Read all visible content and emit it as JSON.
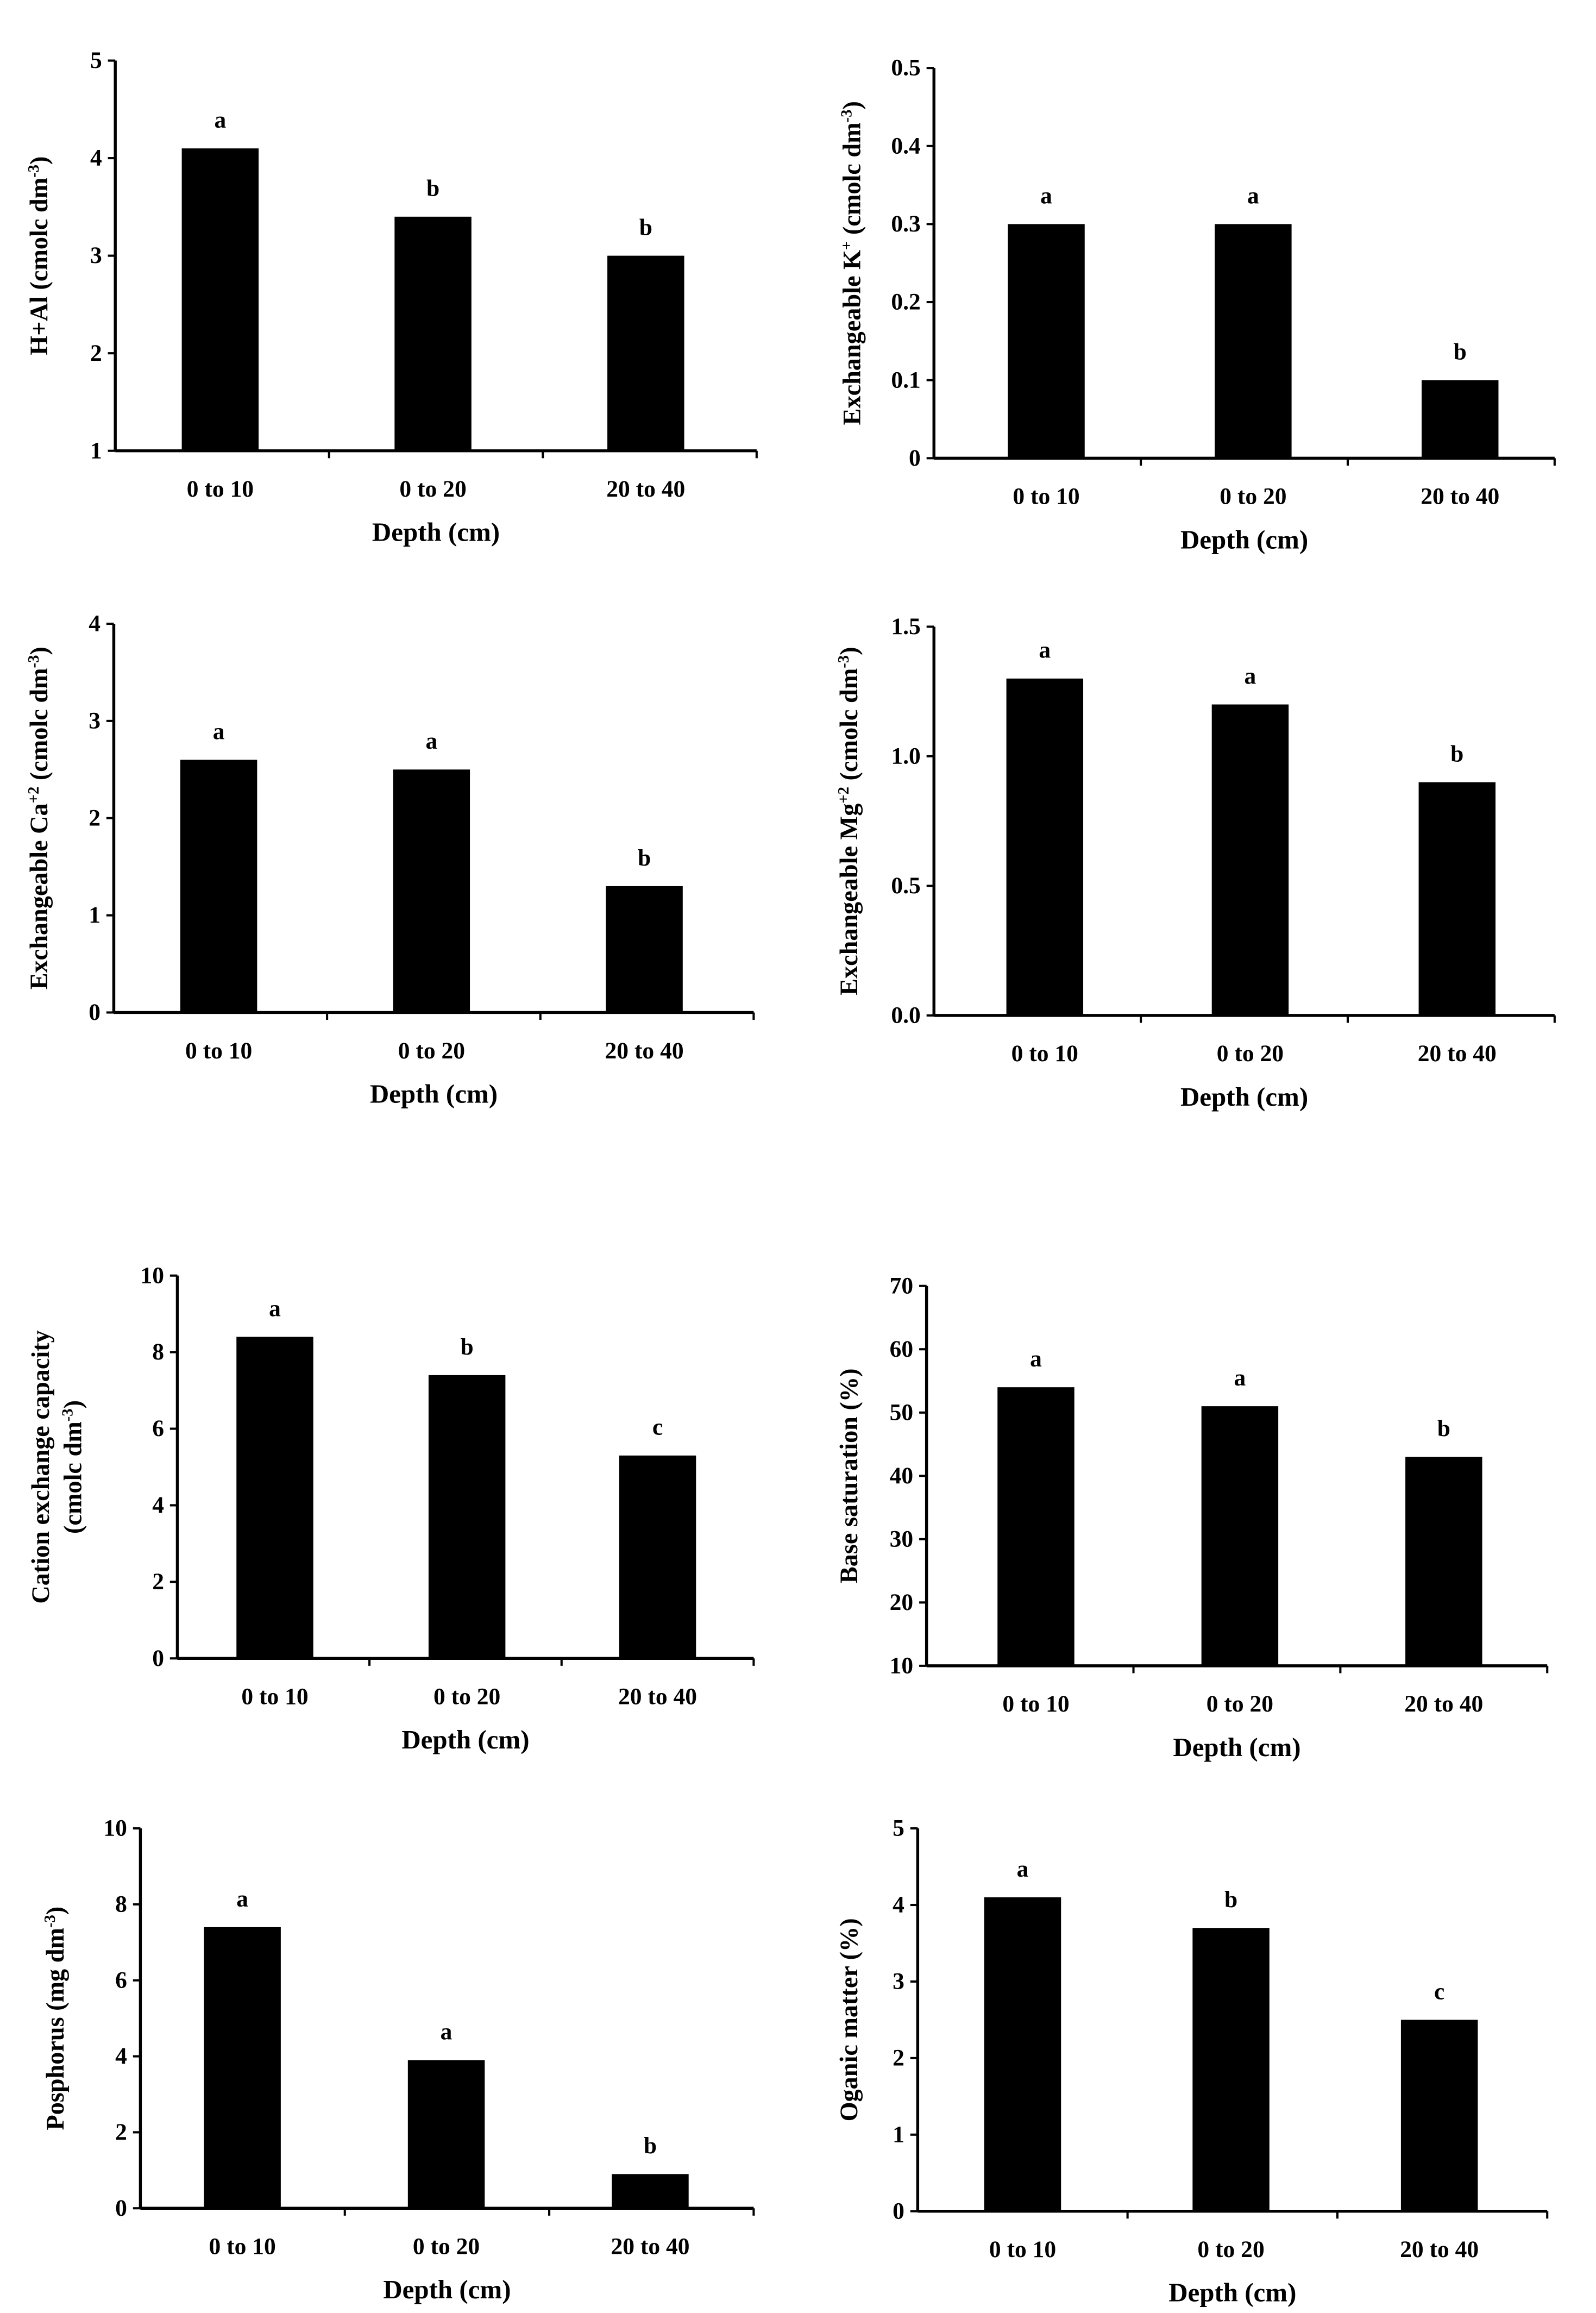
{
  "colors": {
    "bar": "#000000",
    "axis": "#000000",
    "background": "#ffffff"
  },
  "chart_data": [
    {
      "id": "h-al",
      "type": "bar",
      "title": "",
      "xlabel": "Depth (cm)",
      "ylabel_lines": [
        [
          "H+Al (cmolc dm",
          "-3",
          ")"
        ]
      ],
      "categories": [
        "0 to 10",
        "0 to 20",
        "20 to 40"
      ],
      "values": [
        4.1,
        3.4,
        3.0
      ],
      "letters": [
        "a",
        "b",
        "b"
      ],
      "ylim": [
        1,
        5
      ],
      "ytick_values": [
        1,
        2,
        3,
        4,
        5
      ],
      "ytick_labels": [
        "1",
        "2",
        "3",
        "4",
        "5"
      ]
    },
    {
      "id": "potassium",
      "type": "bar",
      "title": "",
      "xlabel": "Depth (cm)",
      "ylabel_lines": [
        [
          "Exchangeable  K",
          "+",
          " (cmolc dm",
          "-3",
          ")"
        ]
      ],
      "categories": [
        "0 to 10",
        "0 to 20",
        "20 to 40"
      ],
      "values": [
        0.3,
        0.3,
        0.1
      ],
      "letters": [
        "a",
        "a",
        "b"
      ],
      "ylim": [
        0,
        0.5
      ],
      "ytick_values": [
        0,
        0.1,
        0.2,
        0.3,
        0.4,
        0.5
      ],
      "ytick_labels": [
        "0",
        "0.1",
        "0.2",
        "0.3",
        "0.4",
        "0.5"
      ]
    },
    {
      "id": "calcium",
      "type": "bar",
      "title": "",
      "xlabel": "Depth (cm)",
      "ylabel_lines": [
        [
          "Exchangeable  Ca",
          "+2",
          " (cmolc dm",
          "-3",
          ")"
        ]
      ],
      "categories": [
        "0 to 10",
        "0 to 20",
        "20 to 40"
      ],
      "values": [
        2.6,
        2.5,
        1.3
      ],
      "letters": [
        "a",
        "a",
        "b"
      ],
      "ylim": [
        0,
        4
      ],
      "ytick_values": [
        0,
        1,
        2,
        3,
        4
      ],
      "ytick_labels": [
        "0",
        "1",
        "2",
        "3",
        "4"
      ]
    },
    {
      "id": "magnesium",
      "type": "bar",
      "title": "",
      "xlabel": "Depth (cm)",
      "ylabel_lines": [
        [
          "Exchangeable  Mg",
          "+2",
          " (cmolc dm",
          "-3",
          ")"
        ]
      ],
      "categories": [
        "0 to 10",
        "0 to 20",
        "20 to 40"
      ],
      "values": [
        1.3,
        1.2,
        0.9
      ],
      "letters": [
        "a",
        "a",
        "b"
      ],
      "ylim": [
        0,
        1.5
      ],
      "ytick_values": [
        0,
        0.5,
        1.0,
        1.5
      ],
      "ytick_labels": [
        "0.0",
        "0.5",
        "1.0",
        "1.5"
      ]
    },
    {
      "id": "cec",
      "type": "bar",
      "title": "",
      "xlabel": "Depth (cm)",
      "ylabel_lines": [
        [
          "Cation exchange capacity"
        ],
        [
          "(cmolc dm",
          "-3",
          ")"
        ]
      ],
      "categories": [
        "0 to 10",
        "0 to 20",
        "20 to 40"
      ],
      "values": [
        8.4,
        7.4,
        5.3
      ],
      "letters": [
        "a",
        "b",
        "c"
      ],
      "ylim": [
        0,
        10
      ],
      "ytick_values": [
        0,
        2,
        4,
        6,
        8,
        10
      ],
      "ytick_labels": [
        "0",
        "2",
        "4",
        "6",
        "8",
        "10"
      ]
    },
    {
      "id": "base-saturation",
      "type": "bar",
      "title": "",
      "xlabel": "Depth (cm)",
      "ylabel_lines": [
        [
          "Base saturation (%)"
        ]
      ],
      "categories": [
        "0 to 10",
        "0 to 20",
        "20 to 40"
      ],
      "values": [
        54,
        51,
        43
      ],
      "letters": [
        "a",
        "a",
        "b"
      ],
      "ylim": [
        10,
        70
      ],
      "ytick_values": [
        10,
        20,
        30,
        40,
        50,
        60,
        70
      ],
      "ytick_labels": [
        "10",
        "20",
        "30",
        "40",
        "50",
        "60",
        "70"
      ]
    },
    {
      "id": "phosphorus",
      "type": "bar",
      "title": "",
      "xlabel": "Depth (cm)",
      "ylabel_lines": [
        [
          "Posphorus (mg dm",
          "-3",
          ")"
        ]
      ],
      "categories": [
        "0 to 10",
        "0 to 20",
        "20 to 40"
      ],
      "values": [
        7.4,
        3.9,
        0.9
      ],
      "letters": [
        "a",
        "a",
        "b"
      ],
      "ylim": [
        0,
        10
      ],
      "ytick_values": [
        0,
        2,
        4,
        6,
        8,
        10
      ],
      "ytick_labels": [
        "0",
        "2",
        "4",
        "6",
        "8",
        "10"
      ]
    },
    {
      "id": "organic-matter",
      "type": "bar",
      "title": "",
      "xlabel": "Depth (cm)",
      "ylabel_lines": [
        [
          "Oganic matter (%)"
        ]
      ],
      "categories": [
        "0 to 10",
        "0 to 20",
        "20 to 40"
      ],
      "values": [
        4.1,
        3.7,
        2.5
      ],
      "letters": [
        "a",
        "b",
        "c"
      ],
      "ylim": [
        0,
        5
      ],
      "ytick_values": [
        0,
        1,
        2,
        3,
        4,
        5
      ],
      "ytick_labels": [
        "0",
        "1",
        "2",
        "3",
        "4",
        "5"
      ]
    }
  ]
}
